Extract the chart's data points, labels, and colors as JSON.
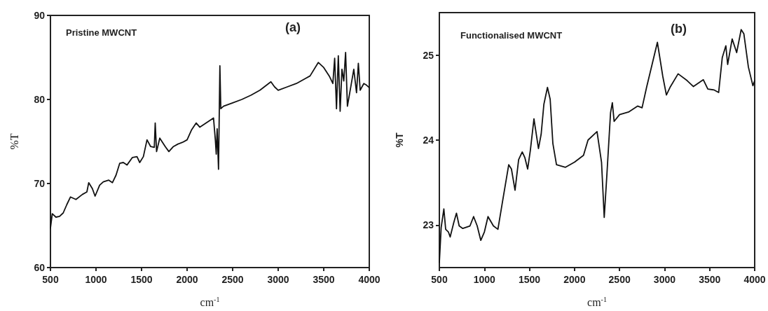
{
  "chart_data": [
    {
      "type": "line",
      "xlabel": "cm$^{-1}$",
      "ylabel": "%T",
      "annotations": [
        "Pristine MWCNT",
        "(a)"
      ],
      "xlim": [
        500,
        4000
      ],
      "xticks": [
        500,
        1000,
        1500,
        2000,
        2500,
        3000,
        3500,
        4000
      ],
      "ylim": [
        60,
        90
      ],
      "yticks": [
        60,
        70,
        80,
        90
      ],
      "grid": false,
      "marker": "none",
      "line_style": "solid",
      "series": [
        {
          "color": "#111111",
          "x": [
            500,
            520,
            560,
            600,
            640,
            680,
            720,
            780,
            850,
            900,
            920,
            960,
            990,
            1040,
            1080,
            1140,
            1180,
            1220,
            1260,
            1300,
            1340,
            1400,
            1450,
            1480,
            1520,
            1560,
            1600,
            1640,
            1650,
            1665,
            1700,
            1760,
            1800,
            1850,
            1900,
            1950,
            2000,
            2050,
            2100,
            2140,
            2290,
            2310,
            2320,
            2330,
            2345,
            2360,
            2370,
            2400,
            2500,
            2600,
            2700,
            2800,
            2920,
            2960,
            3000,
            3100,
            3200,
            3300,
            3350,
            3440,
            3500,
            3560,
            3600,
            3620,
            3640,
            3660,
            3680,
            3700,
            3720,
            3740,
            3760,
            3800,
            3830,
            3860,
            3880,
            3900,
            3940,
            3970,
            4000
          ],
          "values": [
            64.7,
            66.4,
            66,
            66.1,
            66.5,
            67.5,
            68.4,
            68.1,
            68.7,
            69,
            70.1,
            69.4,
            68.5,
            69.8,
            70.2,
            70.4,
            70.1,
            71,
            72.4,
            72.5,
            72.2,
            73.1,
            73.2,
            72.5,
            73.2,
            75.2,
            74.4,
            74.3,
            77.2,
            73.8,
            75.4,
            74.4,
            73.8,
            74.4,
            74.7,
            74.9,
            75.2,
            76.4,
            77.2,
            76.7,
            77.8,
            75.2,
            73.5,
            76.5,
            71.7,
            84,
            78.9,
            79.2,
            79.6,
            80,
            80.5,
            81.1,
            82.1,
            81.5,
            81.1,
            81.5,
            81.9,
            82.5,
            82.8,
            84.4,
            83.8,
            82.8,
            81.9,
            84.9,
            78.9,
            85.2,
            78.6,
            83.6,
            82.2,
            85.6,
            79.2,
            81.7,
            83.6,
            80.8,
            84.3,
            81.1,
            81.9,
            81.7,
            81.4
          ]
        }
      ]
    },
    {
      "type": "line",
      "xlabel": "cm$^{-1}$",
      "ylabel": "%T",
      "annotations": [
        "Functionalised MWCNT",
        "(b)"
      ],
      "xlim": [
        500,
        4000
      ],
      "xticks": [
        500,
        1000,
        1500,
        2000,
        2500,
        3000,
        3500,
        4000
      ],
      "ylim": [
        22.5,
        25.5
      ],
      "yticks": [
        23,
        24,
        25
      ],
      "grid": false,
      "marker": "none",
      "line_style": "solid",
      "series": [
        {
          "color": "#111111",
          "x": [
            500,
            520,
            550,
            570,
            600,
            620,
            660,
            690,
            720,
            760,
            840,
            880,
            920,
            960,
            1000,
            1040,
            1100,
            1150,
            1200,
            1270,
            1300,
            1340,
            1380,
            1420,
            1450,
            1480,
            1510,
            1550,
            1580,
            1600,
            1630,
            1660,
            1700,
            1730,
            1760,
            1800,
            1900,
            2000,
            2100,
            2150,
            2250,
            2300,
            2330,
            2360,
            2400,
            2420,
            2440,
            2500,
            2600,
            2700,
            2750,
            2800,
            2850,
            2920,
            2980,
            3020,
            3060,
            3150,
            3250,
            3320,
            3430,
            3480,
            3550,
            3600,
            3640,
            3680,
            3700,
            3750,
            3800,
            3850,
            3880,
            3930,
            3980,
            4000
          ],
          "values": [
            22.56,
            22.97,
            23.19,
            22.95,
            22.92,
            22.86,
            23.03,
            23.14,
            22.99,
            22.96,
            22.99,
            23.1,
            22.99,
            22.82,
            22.92,
            23.1,
            22.99,
            22.95,
            23.27,
            23.71,
            23.66,
            23.41,
            23.77,
            23.86,
            23.79,
            23.66,
            23.88,
            24.25,
            24.04,
            23.9,
            24.07,
            24.42,
            24.62,
            24.48,
            23.96,
            23.71,
            23.68,
            23.74,
            23.82,
            24,
            24.1,
            23.74,
            23.09,
            23.6,
            24.32,
            24.44,
            24.22,
            24.3,
            24.33,
            24.4,
            24.38,
            24.62,
            24.84,
            25.15,
            24.75,
            24.53,
            24.62,
            24.78,
            24.7,
            24.63,
            24.71,
            24.6,
            24.59,
            24.56,
            24.97,
            25.11,
            24.89,
            25.19,
            25.03,
            25.3,
            25.25,
            24.86,
            24.64,
            24.7
          ]
        }
      ]
    }
  ]
}
